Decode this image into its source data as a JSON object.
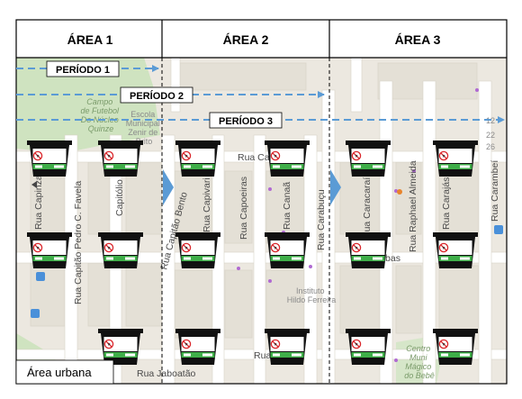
{
  "areas": [
    {
      "label": "ÁREA 1"
    },
    {
      "label": "ÁREA 2"
    },
    {
      "label": "ÁREA 3"
    }
  ],
  "periods": [
    {
      "label": "PERÍODO 1"
    },
    {
      "label": "PERÍODO 2"
    },
    {
      "label": "PERÍODO 3"
    }
  ],
  "urban_label": "Área urbana",
  "trap": {
    "line1": "CONTROLE",
    "line2": "DE MOSQUITOS"
  },
  "streets": {
    "capinza": "Rua Capinza",
    "pedro_favela": "Rua Capitão Pedro C. Favela",
    "capitolio": "Capitólio",
    "capitao_bento": "Rua Capitão Bento",
    "capivari": "Rua Capivari",
    "capoeiras": "Rua Capoeiras",
    "canaa": "Rua Canaã",
    "carabucu": "Rua Carabuçu",
    "caracarai": "Rua Caracaraí",
    "raphael": "Rua Raphael Almeida",
    "carajas": "Rua Carajás",
    "carambei": "Rua Carambeí",
    "caruaru": "Rua Caru",
    "caraubas": "araúbas",
    "jaboatao": "Rua Jaboatão",
    "rua_bottom": "Rua"
  },
  "pois": {
    "campo": [
      "Campo",
      "de Futebol",
      "Do Núcleo",
      "Quinze"
    ],
    "escola": [
      "Escola",
      "Municipal",
      "Zenir de",
      "Brito"
    ],
    "instituto": [
      "Instituto",
      "Hildo Ferreira"
    ],
    "museu": [
      "Centro",
      "Muni",
      "Mágico",
      "do Bebê"
    ]
  },
  "map_numbers": [
    "12",
    "22",
    "26"
  ],
  "colors": {
    "arrow": "#5b9bd5",
    "map_bg": "#ece8e0",
    "road": "#ffffff",
    "block": "#e9e5dc",
    "park": "#cfe3c0",
    "trap_body": "#111111",
    "trap_band": "#3fae49"
  }
}
